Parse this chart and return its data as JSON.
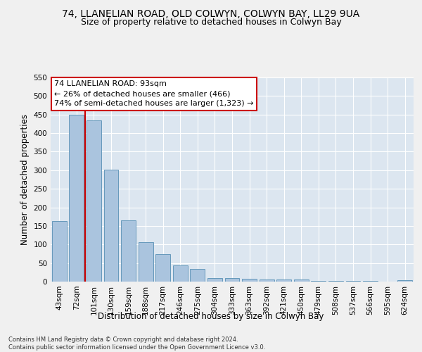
{
  "title": "74, LLANELIAN ROAD, OLD COLWYN, COLWYN BAY, LL29 9UA",
  "subtitle": "Size of property relative to detached houses in Colwyn Bay",
  "xlabel": "Distribution of detached houses by size in Colwyn Bay",
  "ylabel": "Number of detached properties",
  "footer_line1": "Contains HM Land Registry data © Crown copyright and database right 2024.",
  "footer_line2": "Contains public sector information licensed under the Open Government Licence v3.0.",
  "categories": [
    "43sqm",
    "72sqm",
    "101sqm",
    "130sqm",
    "159sqm",
    "188sqm",
    "217sqm",
    "246sqm",
    "275sqm",
    "304sqm",
    "333sqm",
    "363sqm",
    "392sqm",
    "421sqm",
    "450sqm",
    "479sqm",
    "508sqm",
    "537sqm",
    "566sqm",
    "595sqm",
    "624sqm"
  ],
  "values": [
    163,
    450,
    435,
    302,
    165,
    107,
    74,
    43,
    35,
    10,
    10,
    7,
    6,
    6,
    5,
    2,
    1,
    1,
    1,
    0,
    4
  ],
  "bar_color": "#aac4de",
  "bar_edge_color": "#6699bb",
  "highlight_line_color": "#cc0000",
  "annotation_text_line1": "74 LLANELIAN ROAD: 93sqm",
  "annotation_text_line2": "← 26% of detached houses are smaller (466)",
  "annotation_text_line3": "74% of semi-detached houses are larger (1,323) →",
  "annotation_box_color": "#ffffff",
  "annotation_box_edge_color": "#cc0000",
  "ylim": [
    0,
    550
  ],
  "yticks": [
    0,
    50,
    100,
    150,
    200,
    250,
    300,
    350,
    400,
    450,
    500,
    550
  ],
  "background_color": "#dce6f0",
  "grid_color": "#ffffff",
  "fig_background": "#f0f0f0",
  "title_fontsize": 10,
  "subtitle_fontsize": 9,
  "axis_label_fontsize": 8.5,
  "tick_fontsize": 7.5,
  "annotation_fontsize": 8,
  "footer_fontsize": 6
}
